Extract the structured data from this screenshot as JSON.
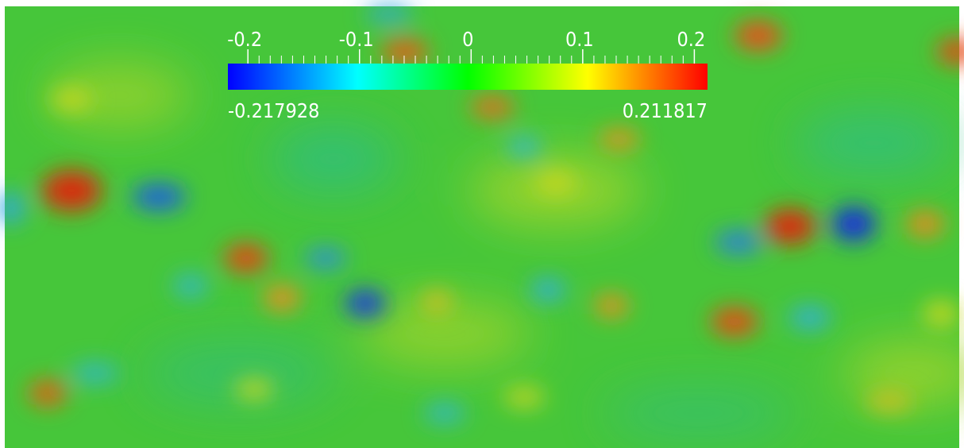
{
  "colorbar": {
    "ticks": [
      -0.2,
      -0.1,
      0,
      0.1,
      0.2
    ],
    "min": -0.217928,
    "max": 0.211817
  }
}
